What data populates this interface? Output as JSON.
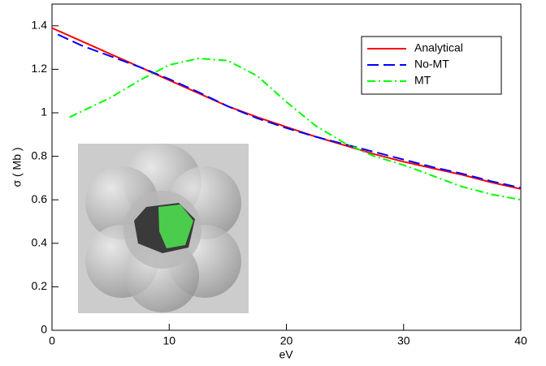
{
  "chart_data": {
    "type": "line",
    "xlabel": "eV",
    "ylabel": "σ ( Mb )",
    "xlim": [
      0,
      40
    ],
    "xticks": [
      0,
      10,
      20,
      30,
      40
    ],
    "ylim": [
      0,
      1.5
    ],
    "yticks": [
      0,
      0.2,
      0.4,
      0.6,
      0.8,
      1,
      1.2,
      1.4
    ],
    "legend": "upper right",
    "series": [
      {
        "name": "Analytical",
        "color": "#ff0000",
        "dash": "solid",
        "x": [
          0,
          2.5,
          5,
          7.5,
          10,
          12.5,
          15,
          17.5,
          20,
          22.5,
          25,
          27.5,
          30,
          32.5,
          35,
          37.5,
          40
        ],
        "values": [
          1.39,
          1.33,
          1.27,
          1.21,
          1.15,
          1.09,
          1.03,
          0.98,
          0.935,
          0.89,
          0.85,
          0.81,
          0.775,
          0.745,
          0.715,
          0.68,
          0.65
        ]
      },
      {
        "name": "No-MT",
        "color": "#0000ff",
        "dash": "dashed",
        "x": [
          0.5,
          2.5,
          5,
          7.5,
          10,
          12.5,
          15,
          17.5,
          20,
          22.5,
          25,
          27.5,
          30,
          32.5,
          35,
          37.5,
          40
        ],
        "values": [
          1.36,
          1.31,
          1.26,
          1.21,
          1.155,
          1.095,
          1.03,
          0.975,
          0.93,
          0.89,
          0.855,
          0.82,
          0.785,
          0.75,
          0.72,
          0.685,
          0.655
        ]
      },
      {
        "name": "MT",
        "color": "#00ff00",
        "dash": "dashdot",
        "x": [
          1.5,
          5,
          7.5,
          10,
          12.5,
          15,
          17.5,
          20,
          22.5,
          25,
          27.5,
          30,
          32.5,
          35,
          37.5,
          40
        ],
        "values": [
          0.98,
          1.07,
          1.15,
          1.22,
          1.25,
          1.24,
          1.17,
          1.05,
          0.94,
          0.86,
          0.8,
          0.76,
          0.71,
          0.66,
          0.625,
          0.6
        ]
      }
    ]
  }
}
